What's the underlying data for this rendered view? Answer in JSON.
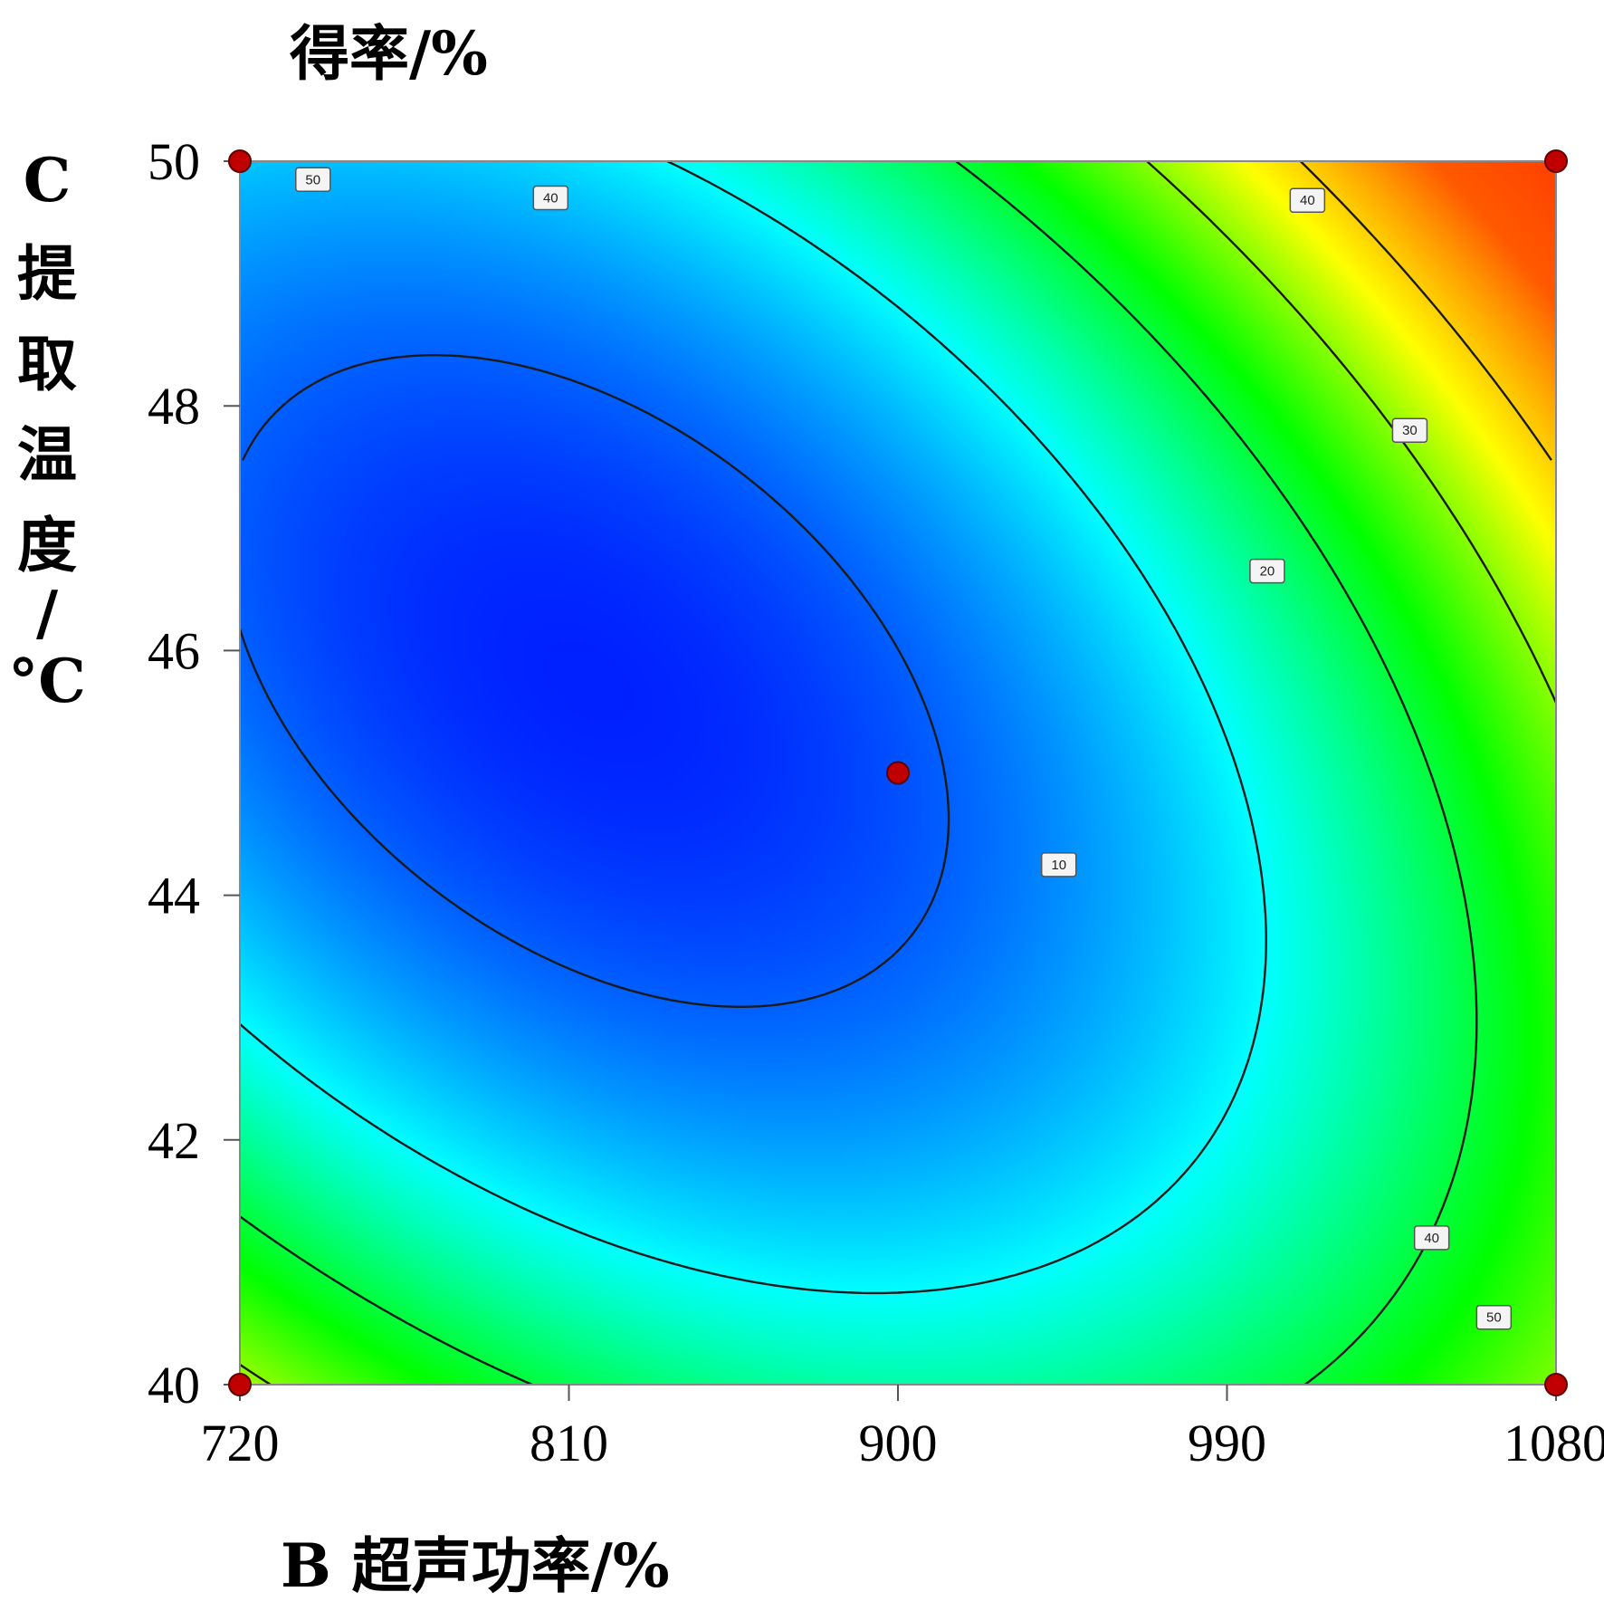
{
  "chart_data": {
    "type": "contour",
    "title": "得率/%",
    "xlabel": "B 超声功率/%",
    "ylabel_lines": [
      "C",
      "提",
      "取",
      "温",
      "度",
      "/",
      "°C"
    ],
    "xlim": [
      720,
      1080
    ],
    "ylim": [
      40,
      50
    ],
    "x_ticks": [
      720,
      810,
      900,
      990,
      1080
    ],
    "y_ticks": [
      40,
      42,
      44,
      46,
      48,
      50
    ],
    "contour_levels": [
      10,
      20,
      30,
      40,
      50
    ],
    "contour_labels": [
      {
        "text": "50",
        "x": 740,
        "y": 49.85
      },
      {
        "text": "40",
        "x": 805,
        "y": 49.7
      },
      {
        "text": "40",
        "x": 1012,
        "y": 49.68
      },
      {
        "text": "30",
        "x": 1040,
        "y": 47.8
      },
      {
        "text": "20",
        "x": 1001,
        "y": 46.65
      },
      {
        "text": "10",
        "x": 944,
        "y": 44.25
      },
      {
        "text": "40",
        "x": 1046,
        "y": 41.2
      },
      {
        "text": "50",
        "x": 1063,
        "y": 40.55
      }
    ],
    "design_points": [
      {
        "x": 720,
        "y": 50
      },
      {
        "x": 1080,
        "y": 50
      },
      {
        "x": 720,
        "y": 40
      },
      {
        "x": 1080,
        "y": 40
      },
      {
        "x": 900,
        "y": 45
      }
    ],
    "colors": {
      "low": "#0000ff",
      "mid_low": "#00ffff",
      "mid": "#00ff00",
      "mid_high": "#ffff00",
      "high": "#ff6000",
      "point": "#c00000"
    }
  }
}
